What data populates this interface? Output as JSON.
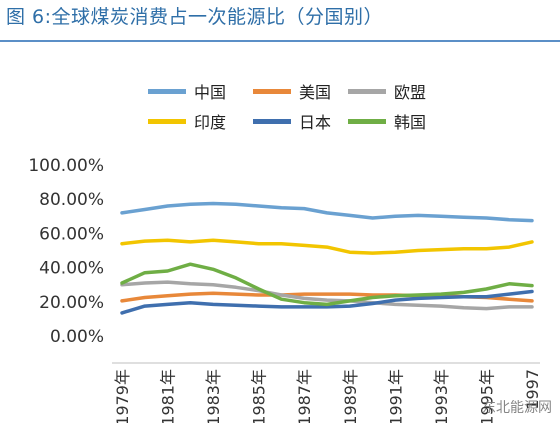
{
  "title": "图 6:全球煤炭消费占一次能源比（分国别）",
  "watermark": "东北能源网",
  "chart_data": {
    "type": "line",
    "title": "图 6:全球煤炭消费占一次能源比（分国别）",
    "xlabel": "",
    "ylabel": "",
    "ylim": [
      0,
      100
    ],
    "y_tick_labels": [
      "0.00%",
      "20.00%",
      "40.00%",
      "60.00%",
      "80.00%",
      "100.00%"
    ],
    "x": [
      1979,
      1980,
      1981,
      1982,
      1983,
      1984,
      1985,
      1986,
      1987,
      1988,
      1989,
      1990,
      1991,
      1992,
      1993,
      1994,
      1995,
      1996,
      1997
    ],
    "x_tick_labels": [
      "1979年",
      "1981年",
      "1983年",
      "1985年",
      "1987年",
      "1989年",
      "1991年",
      "1993年",
      "1995年",
      "1997"
    ],
    "grid": false,
    "legend_position": "top",
    "series": [
      {
        "name": "中国",
        "color": "#6aa1d1",
        "values": [
          72,
          74,
          76,
          77,
          77.5,
          77,
          76,
          75,
          74.5,
          72,
          70.5,
          69,
          70,
          70.5,
          70,
          69.5,
          69,
          68,
          67.5
        ]
      },
      {
        "name": "美国",
        "color": "#e8883a",
        "values": [
          20.5,
          22.5,
          23.5,
          24.5,
          25,
          24.5,
          24,
          24,
          24.5,
          24.5,
          24.5,
          24,
          24,
          23.5,
          23.5,
          23,
          22.5,
          21.5,
          20.5
        ]
      },
      {
        "name": "欧盟",
        "color": "#a6a6a6",
        "values": [
          30,
          31,
          31.5,
          30.5,
          30,
          28.5,
          26.5,
          24,
          22,
          21,
          20.5,
          19.5,
          18.5,
          18,
          17.5,
          16.5,
          16,
          17,
          17
        ]
      },
      {
        "name": "印度",
        "color": "#f2c500",
        "values": [
          54,
          55.5,
          56,
          55,
          56,
          55,
          54,
          54,
          53,
          52,
          49,
          48.5,
          49,
          50,
          50.5,
          51,
          51,
          52,
          55
        ]
      },
      {
        "name": "日本",
        "color": "#3f6fae",
        "values": [
          13.5,
          17.5,
          18.5,
          19.5,
          18.5,
          18,
          17.5,
          17,
          17,
          17,
          17.5,
          19,
          21,
          22,
          22.5,
          23,
          23,
          24.5,
          26
        ]
      },
      {
        "name": "韩国",
        "color": "#6fae45",
        "values": [
          31,
          37,
          38,
          42,
          39,
          34,
          27.5,
          21.5,
          19.5,
          18.5,
          20.5,
          22.5,
          23.5,
          24,
          24.5,
          25.5,
          27.5,
          30.5,
          29.5
        ]
      }
    ]
  }
}
